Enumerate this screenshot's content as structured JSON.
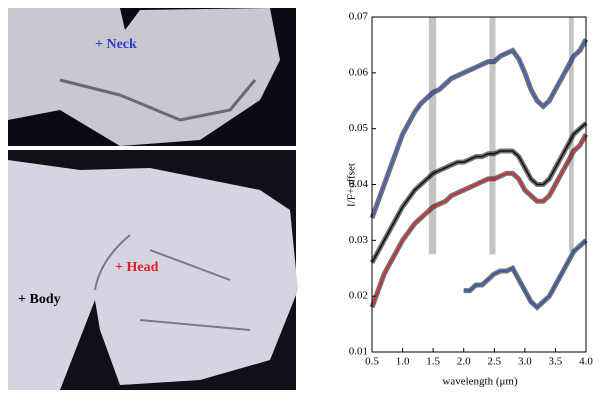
{
  "images": {
    "neck_label": "+ Neck",
    "head_label": "+ Head",
    "body_label": "+ Body"
  },
  "chart_data": {
    "type": "line",
    "ylabel": "I/F+offset",
    "xlabel": "wavelength (μm)",
    "xlim": [
      0.5,
      4.0
    ],
    "xticks": [
      0.5,
      {
        "value": 1,
        "label": "1.0"
      },
      1.5,
      {
        "value": 2,
        "label": "2.0"
      },
      2.5,
      {
        "value": 3,
        "label": "3.0"
      },
      3.5,
      {
        "value": 4,
        "label": "4.0"
      }
    ],
    "ylim": [
      0.01,
      0.07
    ],
    "yticks": [
      0.01,
      0.02,
      0.03,
      0.04,
      0.05,
      0.06,
      0.07
    ],
    "bands": [
      {
        "x": [
          1.43,
          1.55
        ],
        "y": [
          0.0275,
          0.07
        ]
      },
      {
        "x": [
          2.42,
          2.52
        ],
        "y": [
          0.0275,
          0.07
        ]
      },
      {
        "x": [
          3.72,
          3.8
        ],
        "y": [
          0.028,
          0.07
        ]
      }
    ],
    "x": [
      0.5,
      0.6,
      0.7,
      0.8,
      0.9,
      1.0,
      1.1,
      1.2,
      1.3,
      1.4,
      1.5,
      1.6,
      1.7,
      1.8,
      1.9,
      2.0,
      2.1,
      2.2,
      2.3,
      2.4,
      2.5,
      2.6,
      2.7,
      2.8,
      2.9,
      3.0,
      3.1,
      3.2,
      3.3,
      3.4,
      3.5,
      3.6,
      3.7,
      3.8,
      3.9,
      4.0
    ],
    "series": [
      {
        "color": "#3b5fcf",
        "values": [
          0.034,
          0.037,
          0.04,
          0.043,
          0.046,
          0.049,
          0.051,
          0.053,
          0.0545,
          0.0555,
          0.0565,
          0.057,
          0.058,
          0.059,
          0.0595,
          0.06,
          0.0605,
          0.061,
          0.0615,
          0.062,
          0.062,
          0.063,
          0.0635,
          0.064,
          0.0625,
          0.06,
          0.057,
          0.055,
          0.054,
          0.055,
          0.057,
          0.059,
          0.061,
          0.063,
          0.064,
          0.066
        ]
      },
      {
        "color": "#111111",
        "values": [
          0.026,
          0.028,
          0.03,
          0.032,
          0.034,
          0.036,
          0.0375,
          0.039,
          0.04,
          0.041,
          0.042,
          0.0425,
          0.043,
          0.0435,
          0.044,
          0.044,
          0.0445,
          0.045,
          0.045,
          0.0455,
          0.0455,
          0.046,
          0.046,
          0.046,
          0.045,
          0.043,
          0.041,
          0.04,
          0.04,
          0.041,
          0.043,
          0.045,
          0.047,
          0.049,
          0.05,
          0.051
        ]
      },
      {
        "color": "#e02424",
        "values": [
          0.018,
          0.021,
          0.024,
          0.026,
          0.028,
          0.03,
          0.0315,
          0.033,
          0.034,
          0.035,
          0.036,
          0.0365,
          0.037,
          0.038,
          0.0385,
          0.039,
          0.0395,
          0.04,
          0.0405,
          0.041,
          0.041,
          0.0415,
          0.042,
          0.042,
          0.041,
          0.039,
          0.038,
          0.037,
          0.037,
          0.038,
          0.04,
          0.042,
          0.044,
          0.046,
          0.047,
          0.049
        ]
      },
      {
        "color": "#2b55b8",
        "values": [
          null,
          null,
          null,
          null,
          null,
          null,
          null,
          null,
          null,
          null,
          null,
          null,
          null,
          null,
          null,
          0.021,
          0.021,
          0.022,
          0.022,
          0.023,
          0.024,
          0.0245,
          0.0245,
          0.025,
          0.023,
          0.021,
          0.019,
          0.018,
          0.019,
          0.02,
          0.022,
          0.024,
          0.026,
          0.028,
          0.029,
          0.03
        ]
      }
    ]
  }
}
